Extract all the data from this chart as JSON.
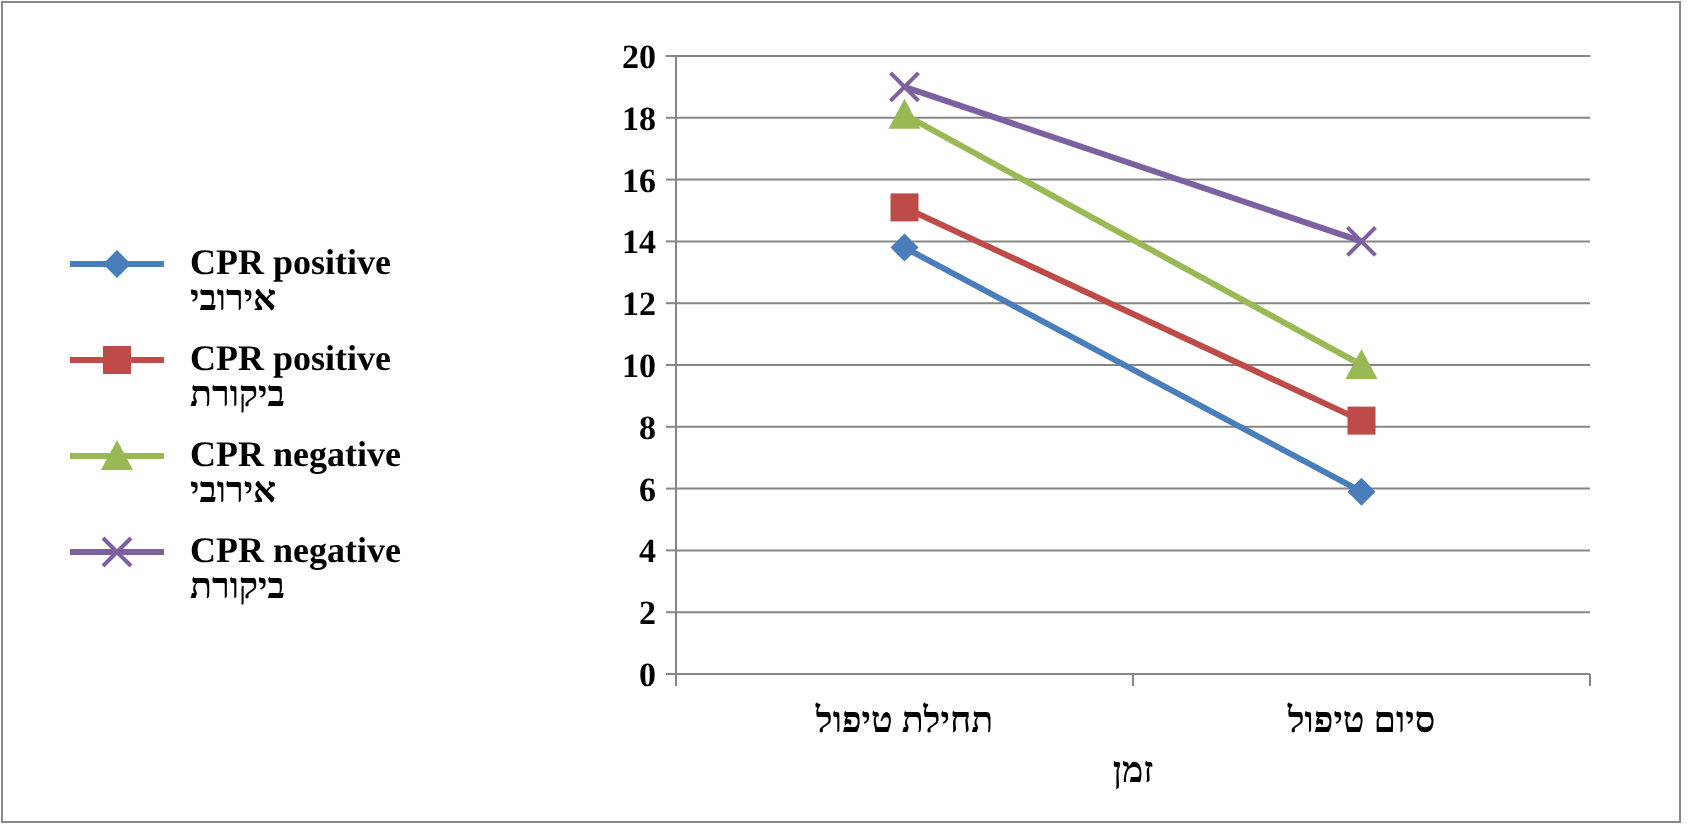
{
  "chart_data": {
    "type": "line",
    "xlabel": "זמן",
    "categories": [
      "תחילת טיפול",
      "סיום טיפול"
    ],
    "ylim": [
      0,
      20
    ],
    "yticks": [
      0,
      2,
      4,
      6,
      8,
      10,
      12,
      14,
      16,
      18,
      20
    ],
    "grid": "y",
    "legend": "left",
    "series": [
      {
        "name": "CPR positive אירובי",
        "color": "#4a7ebb",
        "marker": "diamond",
        "values": [
          13.8,
          5.9
        ]
      },
      {
        "name": "CPR positive ביקורת",
        "color": "#be4b48",
        "marker": "square",
        "values": [
          15.1,
          8.2
        ]
      },
      {
        "name": "CPR negative אירובי",
        "color": "#98b954",
        "marker": "triangle",
        "values": [
          18.1,
          10
        ]
      },
      {
        "name": "CPR negative ביקורת",
        "color": "#7d60a0",
        "marker": "cross",
        "values": [
          19,
          14
        ]
      }
    ]
  }
}
